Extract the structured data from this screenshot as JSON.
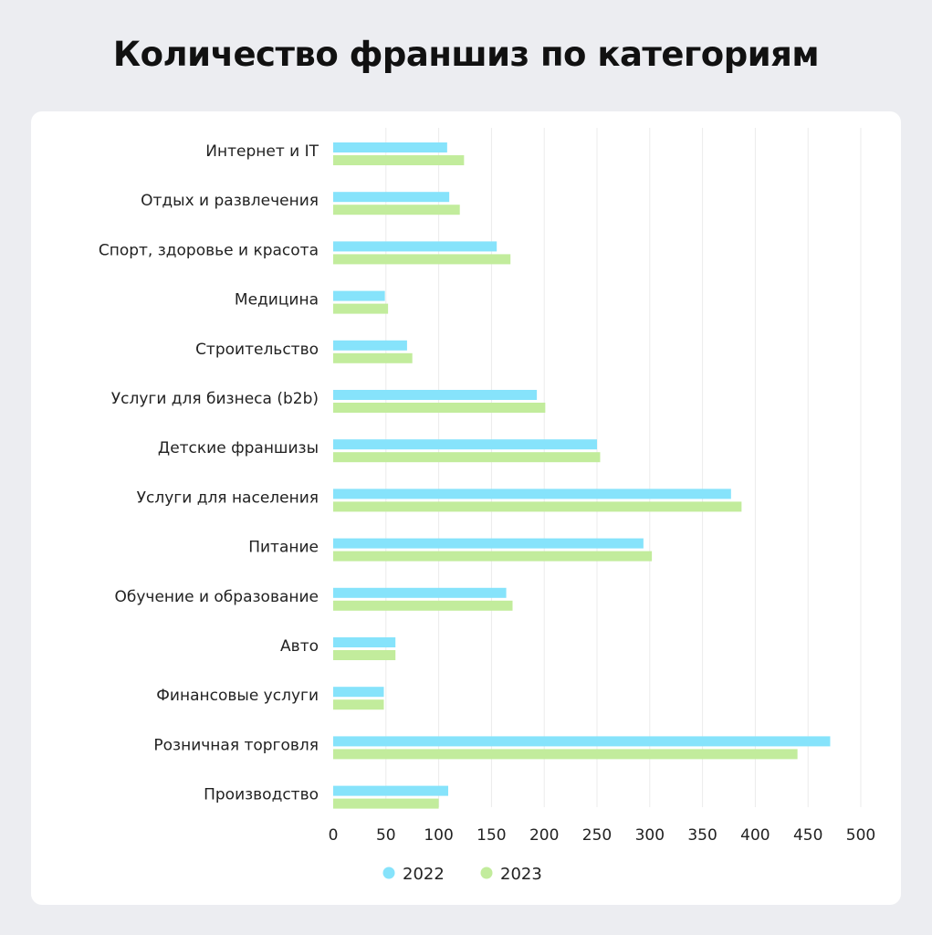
{
  "title": "Количество франшиз по категориям",
  "chart_data": {
    "type": "bar",
    "orientation": "horizontal",
    "title": "Количество франшиз по категориям",
    "categories": [
      "Интернет и IT",
      "Отдых и развлечения",
      "Спорт, здоровье и красота",
      "Медицина",
      "Строительство",
      "Услуги для бизнеса (b2b)",
      "Детские франшизы",
      "Услуги для населения",
      "Питание",
      "Обучение и образование",
      "Авто",
      "Финансовые услуги",
      "Розничная торговля",
      "Производство"
    ],
    "series": [
      {
        "name": "2022",
        "color": "#86e3fb",
        "values": [
          108,
          110,
          155,
          49,
          70,
          193,
          250,
          377,
          294,
          164,
          59,
          48,
          471,
          109
        ]
      },
      {
        "name": "2023",
        "color": "#c2ec9c",
        "values": [
          124,
          120,
          168,
          52,
          75,
          201,
          253,
          387,
          302,
          170,
          59,
          48,
          440,
          100
        ]
      }
    ],
    "xlim": [
      0,
      500
    ],
    "xticks": [
      "0",
      "50",
      "100",
      "150",
      "200",
      "250",
      "300",
      "350",
      "400",
      "450",
      "500"
    ],
    "grid": true,
    "legend": "bottom"
  }
}
